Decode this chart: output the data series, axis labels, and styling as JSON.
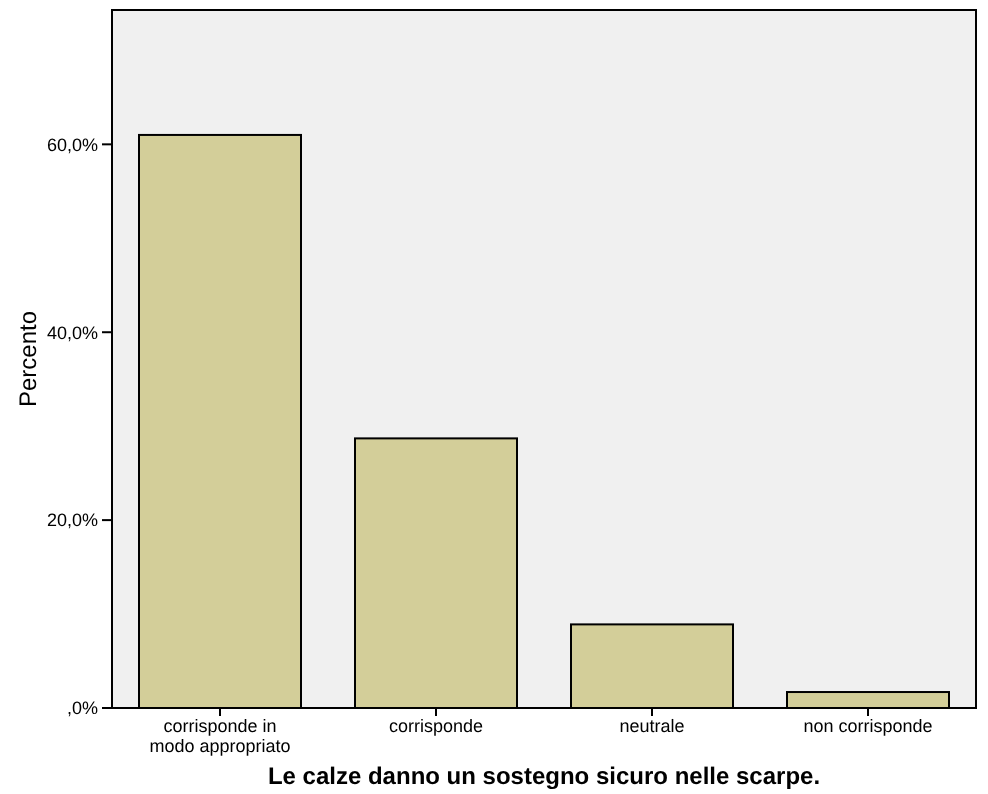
{
  "chart_data": {
    "type": "bar",
    "xlabel": "Le calze danno un sostegno sicuro nelle scarpe.",
    "ylabel": "Percento",
    "categories": [
      "corrisponde in modo appropriato",
      "corrisponde",
      "neutrale",
      "non corrisponde"
    ],
    "values": [
      61,
      28.7,
      8.9,
      1.7
    ],
    "color": "#d3ce99",
    "ylim": [
      0,
      74.3
    ],
    "yticks": [
      {
        "value": 0,
        "label": ",0%"
      },
      {
        "value": 20,
        "label": "20,0%"
      },
      {
        "value": 40,
        "label": "40,0%"
      },
      {
        "value": 60,
        "label": "60,0%"
      }
    ],
    "grid": false
  }
}
